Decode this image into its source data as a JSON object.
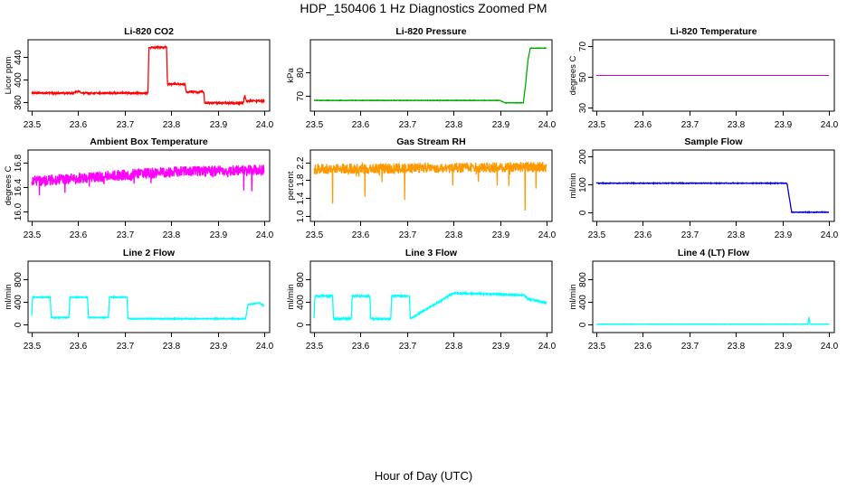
{
  "figure": {
    "title": "HDP_150406  1 Hz Diagnostics Zoomed PM",
    "xlabel": "Hour of Day (UTC)"
  },
  "chart_data": [
    {
      "type": "line",
      "title": "Li-820 CO2",
      "ylabel": "Licor ppm",
      "color": "#ff0000",
      "xlim": [
        23.5,
        24.0
      ],
      "ylim": [
        350,
        465
      ],
      "xticks": [
        "23.5",
        "23.6",
        "23.7",
        "23.8",
        "23.9",
        "24.0"
      ],
      "yticks": [
        360,
        400,
        440
      ],
      "noise": 1.5,
      "x": [
        23.5,
        23.59,
        23.6,
        23.61,
        23.75,
        23.752,
        23.79,
        23.792,
        23.83,
        23.832,
        23.87,
        23.872,
        23.955,
        23.958,
        23.962,
        23.97,
        24.0
      ],
      "y": [
        376,
        376,
        379,
        376,
        376,
        458,
        458,
        392,
        392,
        378,
        378,
        358,
        358,
        372,
        361,
        362,
        362
      ]
    },
    {
      "type": "line",
      "title": "Li-820 Pressure",
      "ylabel": "kPa",
      "color": "#00aa00",
      "xlim": [
        23.5,
        24.0
      ],
      "ylim": [
        65,
        92
      ],
      "xticks": [
        "23.5",
        "23.6",
        "23.7",
        "23.8",
        "23.9",
        "24.0"
      ],
      "yticks": [
        70,
        80
      ],
      "noise": 0.1,
      "x": [
        23.5,
        23.9,
        23.91,
        23.95,
        23.955,
        23.96,
        23.965,
        24.0
      ],
      "y": [
        68,
        68,
        67,
        67,
        75,
        85,
        90,
        90
      ]
    },
    {
      "type": "line",
      "title": "Li-820 Temperature",
      "ylabel": "degrees C",
      "color": "#cc00cc",
      "xlim": [
        23.5,
        24.0
      ],
      "ylim": [
        30,
        72
      ],
      "xticks": [
        "23.5",
        "23.6",
        "23.7",
        "23.8",
        "23.9",
        "24.0"
      ],
      "yticks": [
        30,
        50,
        70
      ],
      "noise": 0,
      "x": [
        23.5,
        24.0
      ],
      "y": [
        51,
        51
      ]
    },
    {
      "type": "line",
      "title": "Ambient Box Temperature",
      "ylabel": "degrees C",
      "color": "#ff00ff",
      "xlim": [
        23.5,
        24.0
      ],
      "ylim": [
        15.9,
        16.95
      ],
      "xticks": [
        "23.5",
        "23.6",
        "23.7",
        "23.8",
        "23.9",
        "24.0"
      ],
      "yticks": [
        16.0,
        16.4,
        16.8
      ],
      "noise": 0.09,
      "x": [
        23.5,
        23.7,
        23.8,
        24.0
      ],
      "y": [
        16.5,
        16.6,
        16.65,
        16.68
      ]
    },
    {
      "type": "line",
      "title": "Gas Stream RH",
      "ylabel": "percent",
      "color": "#ff9900",
      "xlim": [
        23.5,
        24.0
      ],
      "ylim": [
        0.95,
        2.4
      ],
      "xticks": [
        "23.5",
        "23.6",
        "23.7",
        "23.8",
        "23.9",
        "24.0"
      ],
      "yticks": [
        1.0,
        1.4,
        1.8,
        2.2
      ],
      "noise": 0.12,
      "x": [
        23.5,
        24.0
      ],
      "y": [
        2.05,
        2.1
      ]
    },
    {
      "type": "line",
      "title": "Sample Flow",
      "ylabel": "ml/min",
      "color": "#0000cc",
      "xlim": [
        23.5,
        24.0
      ],
      "ylim": [
        -20,
        210
      ],
      "xticks": [
        "23.5",
        "23.6",
        "23.7",
        "23.8",
        "23.9",
        "24.0"
      ],
      "yticks": [
        0,
        100,
        200
      ],
      "noise": 1.2,
      "x": [
        23.5,
        23.91,
        23.915,
        23.92,
        24.0
      ],
      "y": [
        104,
        104,
        50,
        0,
        0
      ]
    },
    {
      "type": "line",
      "title": "Line 2 Flow",
      "ylabel": "ml/min",
      "color": "#00ffff",
      "xlim": [
        23.5,
        24.0
      ],
      "ylim": [
        -80,
        1050
      ],
      "xticks": [
        "23.5",
        "23.6",
        "23.7",
        "23.8",
        "23.9",
        "24.0"
      ],
      "yticks": [
        0,
        400,
        800
      ],
      "noise": 8,
      "x": [
        23.5,
        23.502,
        23.54,
        23.542,
        23.58,
        23.582,
        23.62,
        23.622,
        23.665,
        23.667,
        23.705,
        23.707,
        23.96,
        23.965,
        23.99,
        24.0
      ],
      "y": [
        150,
        480,
        480,
        120,
        120,
        480,
        480,
        120,
        120,
        480,
        480,
        100,
        100,
        350,
        380,
        320
      ]
    },
    {
      "type": "line",
      "title": "Line 3 Flow",
      "ylabel": "ml/min",
      "color": "#00ffff",
      "xlim": [
        23.5,
        24.0
      ],
      "ylim": [
        -80,
        1050
      ],
      "xticks": [
        "23.5",
        "23.6",
        "23.7",
        "23.8",
        "23.9",
        "24.0"
      ],
      "yticks": [
        0,
        400,
        800
      ],
      "noise": 15,
      "x": [
        23.5,
        23.502,
        23.54,
        23.542,
        23.58,
        23.582,
        23.62,
        23.622,
        23.665,
        23.667,
        23.705,
        23.707,
        23.8,
        23.95,
        23.96,
        24.0
      ],
      "y": [
        100,
        500,
        500,
        100,
        100,
        500,
        500,
        100,
        100,
        500,
        500,
        100,
        550,
        520,
        450,
        380
      ]
    },
    {
      "type": "line",
      "title": "Line 4 (LT) Flow",
      "ylabel": "ml/min",
      "color": "#00ffff",
      "xlim": [
        23.5,
        24.0
      ],
      "ylim": [
        -80,
        1050
      ],
      "xticks": [
        "23.5",
        "23.6",
        "23.7",
        "23.8",
        "23.9",
        "24.0"
      ],
      "yticks": [
        0,
        400,
        800
      ],
      "noise": 3,
      "x": [
        23.5,
        23.955,
        23.957,
        23.959,
        23.961,
        24.0
      ],
      "y": [
        5,
        5,
        130,
        10,
        5,
        5
      ]
    }
  ]
}
